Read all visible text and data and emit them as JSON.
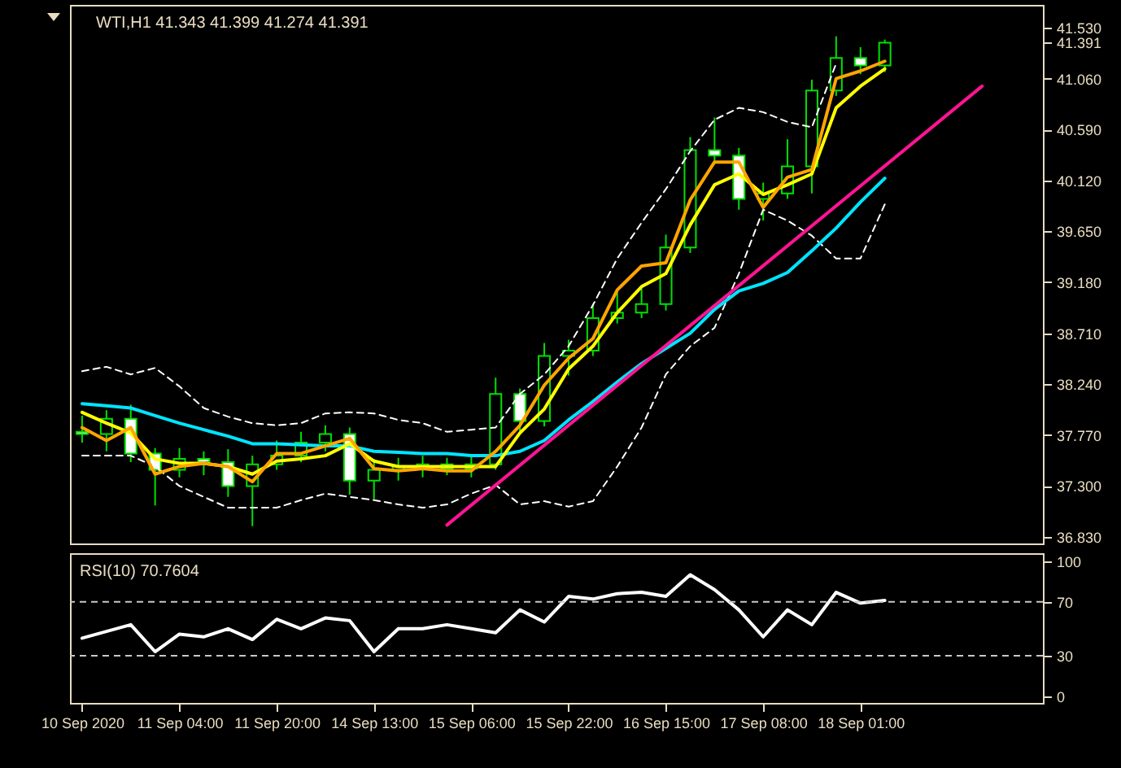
{
  "chart_data": [
    {
      "type": "candlestick",
      "title": "WTI,H1  41.343 41.399 41.274 41.391",
      "color": "#00e000",
      "categories": [
        null,
        null,
        null,
        null,
        null,
        null,
        null,
        null,
        null,
        null,
        null,
        null,
        null,
        null,
        null,
        null,
        null,
        null,
        null,
        null,
        null,
        null,
        null,
        null,
        null,
        null,
        null,
        null,
        null,
        null,
        null,
        null,
        null,
        null,
        null,
        null,
        null,
        null,
        null,
        null
      ],
      "ohlc": [
        [
          37.8,
          37.95,
          37.7,
          37.78
        ],
        [
          37.78,
          38.0,
          37.62,
          37.92
        ],
        [
          37.92,
          38.05,
          37.52,
          37.6
        ],
        [
          37.6,
          37.65,
          37.12,
          37.45
        ],
        [
          37.45,
          37.65,
          37.38,
          37.55
        ],
        [
          37.55,
          37.62,
          37.4,
          37.52
        ],
        [
          37.52,
          37.64,
          37.2,
          37.3
        ],
        [
          37.3,
          37.58,
          36.93,
          37.5
        ],
        [
          37.5,
          37.72,
          37.45,
          37.58
        ],
        [
          37.58,
          37.8,
          37.52,
          37.7
        ],
        [
          37.7,
          37.86,
          37.62,
          37.78
        ],
        [
          37.78,
          37.84,
          37.22,
          37.35
        ],
        [
          37.35,
          37.55,
          37.18,
          37.45
        ],
        [
          37.45,
          37.56,
          37.35,
          37.48
        ],
        [
          37.48,
          37.58,
          37.38,
          37.5
        ],
        [
          37.5,
          37.56,
          37.4,
          37.46
        ],
        [
          37.46,
          37.58,
          37.38,
          37.5
        ],
        [
          37.5,
          38.3,
          37.45,
          38.15
        ],
        [
          38.15,
          38.2,
          37.8,
          37.9
        ],
        [
          37.9,
          38.62,
          37.85,
          38.5
        ],
        [
          38.5,
          38.65,
          38.32,
          38.55
        ],
        [
          38.55,
          38.98,
          38.5,
          38.85
        ],
        [
          38.85,
          39.1,
          38.8,
          38.9
        ],
        [
          38.9,
          39.12,
          38.85,
          38.98
        ],
        [
          38.98,
          39.62,
          38.92,
          39.5
        ],
        [
          39.5,
          40.52,
          39.45,
          40.4
        ],
        [
          40.4,
          40.7,
          40.28,
          40.35
        ],
        [
          40.35,
          40.42,
          39.85,
          39.95
        ],
        [
          39.95,
          40.1,
          39.75,
          40.0
        ],
        [
          40.0,
          40.5,
          39.95,
          40.25
        ],
        [
          40.25,
          41.05,
          40.0,
          40.95
        ],
        [
          40.95,
          41.45,
          40.9,
          41.25
        ],
        [
          41.25,
          41.35,
          41.1,
          41.18
        ],
        [
          41.18,
          41.42,
          41.12,
          41.391
        ],
        null,
        null,
        null,
        null,
        null,
        null
      ],
      "series": [
        {
          "type": "line",
          "color": "#ffffff",
          "line_style": "dashed",
          "values": [
            38.36,
            38.4,
            38.33,
            38.39,
            38.22,
            38.02,
            37.94,
            37.88,
            37.86,
            37.88,
            37.97,
            37.98,
            37.97,
            37.91,
            37.88,
            37.8,
            37.82,
            37.84,
            38.15,
            38.33,
            38.59,
            38.97,
            39.4,
            39.73,
            40.04,
            40.39,
            40.68,
            40.79,
            40.75,
            40.66,
            40.61,
            41.2,
            null,
            null,
            null,
            null,
            null,
            null,
            null,
            null
          ]
        },
        {
          "type": "line",
          "color": "#ffffff",
          "line_style": "dashed",
          "values": [
            37.58,
            37.58,
            37.58,
            37.48,
            37.3,
            37.2,
            37.1,
            37.1,
            37.1,
            37.17,
            37.23,
            37.2,
            37.17,
            37.13,
            37.1,
            37.13,
            37.23,
            37.31,
            37.13,
            37.16,
            37.11,
            37.16,
            37.48,
            37.84,
            38.33,
            38.59,
            38.76,
            39.26,
            39.85,
            39.75,
            39.61,
            39.4,
            39.4,
            39.9,
            null,
            null,
            null,
            null,
            null,
            null
          ]
        },
        {
          "type": "line",
          "color": "#00e5ff",
          "values": [
            38.06,
            38.04,
            38.02,
            37.95,
            37.88,
            37.82,
            37.76,
            37.69,
            37.69,
            37.68,
            37.67,
            37.67,
            37.62,
            37.61,
            37.6,
            37.6,
            37.58,
            37.58,
            37.62,
            37.72,
            37.91,
            38.08,
            38.26,
            38.43,
            38.57,
            38.71,
            38.93,
            39.1,
            39.17,
            39.27,
            39.47,
            39.68,
            39.92,
            40.14,
            null,
            null,
            null,
            null,
            null,
            null
          ]
        },
        {
          "type": "line",
          "color": "#ffff00",
          "values": [
            37.98,
            37.88,
            37.79,
            37.55,
            37.51,
            37.51,
            37.48,
            37.41,
            37.53,
            37.55,
            37.58,
            37.69,
            37.53,
            37.48,
            37.48,
            37.48,
            37.48,
            37.48,
            37.79,
            38.01,
            38.38,
            38.59,
            38.9,
            39.14,
            39.26,
            39.71,
            40.08,
            40.18,
            39.99,
            40.08,
            40.18,
            40.79,
            40.99,
            41.15,
            null,
            null,
            null,
            null,
            null,
            null
          ]
        },
        {
          "type": "line",
          "color": "#ffa500",
          "values": [
            37.84,
            37.72,
            37.84,
            37.41,
            37.48,
            37.51,
            37.48,
            37.34,
            37.6,
            37.6,
            37.67,
            37.74,
            37.46,
            37.44,
            37.46,
            37.44,
            37.44,
            37.62,
            37.86,
            38.23,
            38.48,
            38.66,
            39.11,
            39.33,
            39.36,
            39.94,
            40.29,
            40.29,
            39.87,
            40.15,
            40.22,
            41.06,
            41.13,
            41.22,
            null,
            null,
            null,
            null,
            null,
            null
          ]
        },
        {
          "type": "line",
          "color": "#ff1493",
          "values": [
            null,
            null,
            null,
            null,
            null,
            null,
            null,
            null,
            null,
            null,
            null,
            null,
            null,
            null,
            null,
            36.94,
            null,
            null,
            null,
            null,
            null,
            null,
            null,
            null,
            null,
            null,
            null,
            null,
            null,
            null,
            null,
            null,
            null,
            null,
            null,
            null,
            null,
            40.99,
            null,
            null
          ]
        }
      ],
      "ylim": [
        36.77,
        41.74
      ],
      "yticks": [
        {
          "value": 36.83,
          "label": "36.830"
        },
        {
          "value": 37.3,
          "label": "37.300"
        },
        {
          "value": 37.77,
          "label": "37.770"
        },
        {
          "value": 38.24,
          "label": "38.240"
        },
        {
          "value": 38.71,
          "label": "38.710"
        },
        {
          "value": 39.18,
          "label": "39.180"
        },
        {
          "value": 39.65,
          "label": "39.650"
        },
        {
          "value": 40.12,
          "label": "40.120"
        },
        {
          "value": 40.59,
          "label": "40.590"
        },
        {
          "value": 41.06,
          "label": "41.060"
        },
        {
          "value": 41.391,
          "label": "41.391"
        },
        {
          "value": 41.53,
          "label": "41.530"
        }
      ],
      "tick_labels": "y"
    },
    {
      "type": "line",
      "title": "RSI(10) 70.7604",
      "color": "#ffffff",
      "categories": [
        "10 Sep 2020",
        null,
        null,
        null,
        "11 Sep 04:00",
        null,
        null,
        null,
        "11 Sep 20:00",
        null,
        null,
        null,
        "14 Sep 13:00",
        null,
        null,
        null,
        "15 Sep 06:00",
        null,
        null,
        null,
        "15 Sep 22:00",
        null,
        null,
        null,
        "16 Sep 15:00",
        null,
        null,
        null,
        "17 Sep 08:00",
        null,
        null,
        null,
        "18 Sep 01:00",
        null,
        null,
        null,
        null,
        null,
        null,
        null
      ],
      "values": [
        43,
        48,
        53,
        33,
        46,
        44,
        50,
        42,
        57,
        50,
        58,
        56,
        33,
        50,
        50,
        53,
        50,
        47,
        64,
        55,
        74,
        72,
        76,
        77,
        74,
        90,
        79,
        64,
        44,
        64,
        53,
        77,
        69,
        71,
        null,
        null,
        null,
        null,
        null,
        null
      ],
      "ylim": [
        -5,
        106
      ],
      "yticks": [
        0,
        30,
        70,
        100
      ],
      "ref_lines": [
        {
          "axis": "y",
          "value": 70,
          "color": "#c8c8c8",
          "line_style": "dashed"
        },
        {
          "axis": "y",
          "value": 30,
          "color": "#c8c8c8",
          "line_style": "dashed"
        }
      ]
    }
  ]
}
